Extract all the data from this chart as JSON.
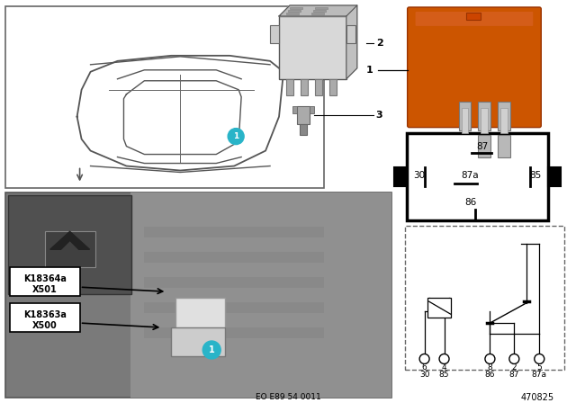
{
  "bg_color": "#ffffff",
  "fig_width": 6.4,
  "fig_height": 4.48,
  "dpi": 100,
  "relay_orange": "#cc5500",
  "teal_circle": "#29b4c8",
  "bottom_text": "EO E89 54 0011",
  "part_number": "470825",
  "pin_labels_bottom_row1": [
    "6",
    "4",
    "8",
    "2",
    "5"
  ],
  "pin_labels_bottom_row2": [
    "30",
    "85",
    "86",
    "87",
    "87a"
  ]
}
